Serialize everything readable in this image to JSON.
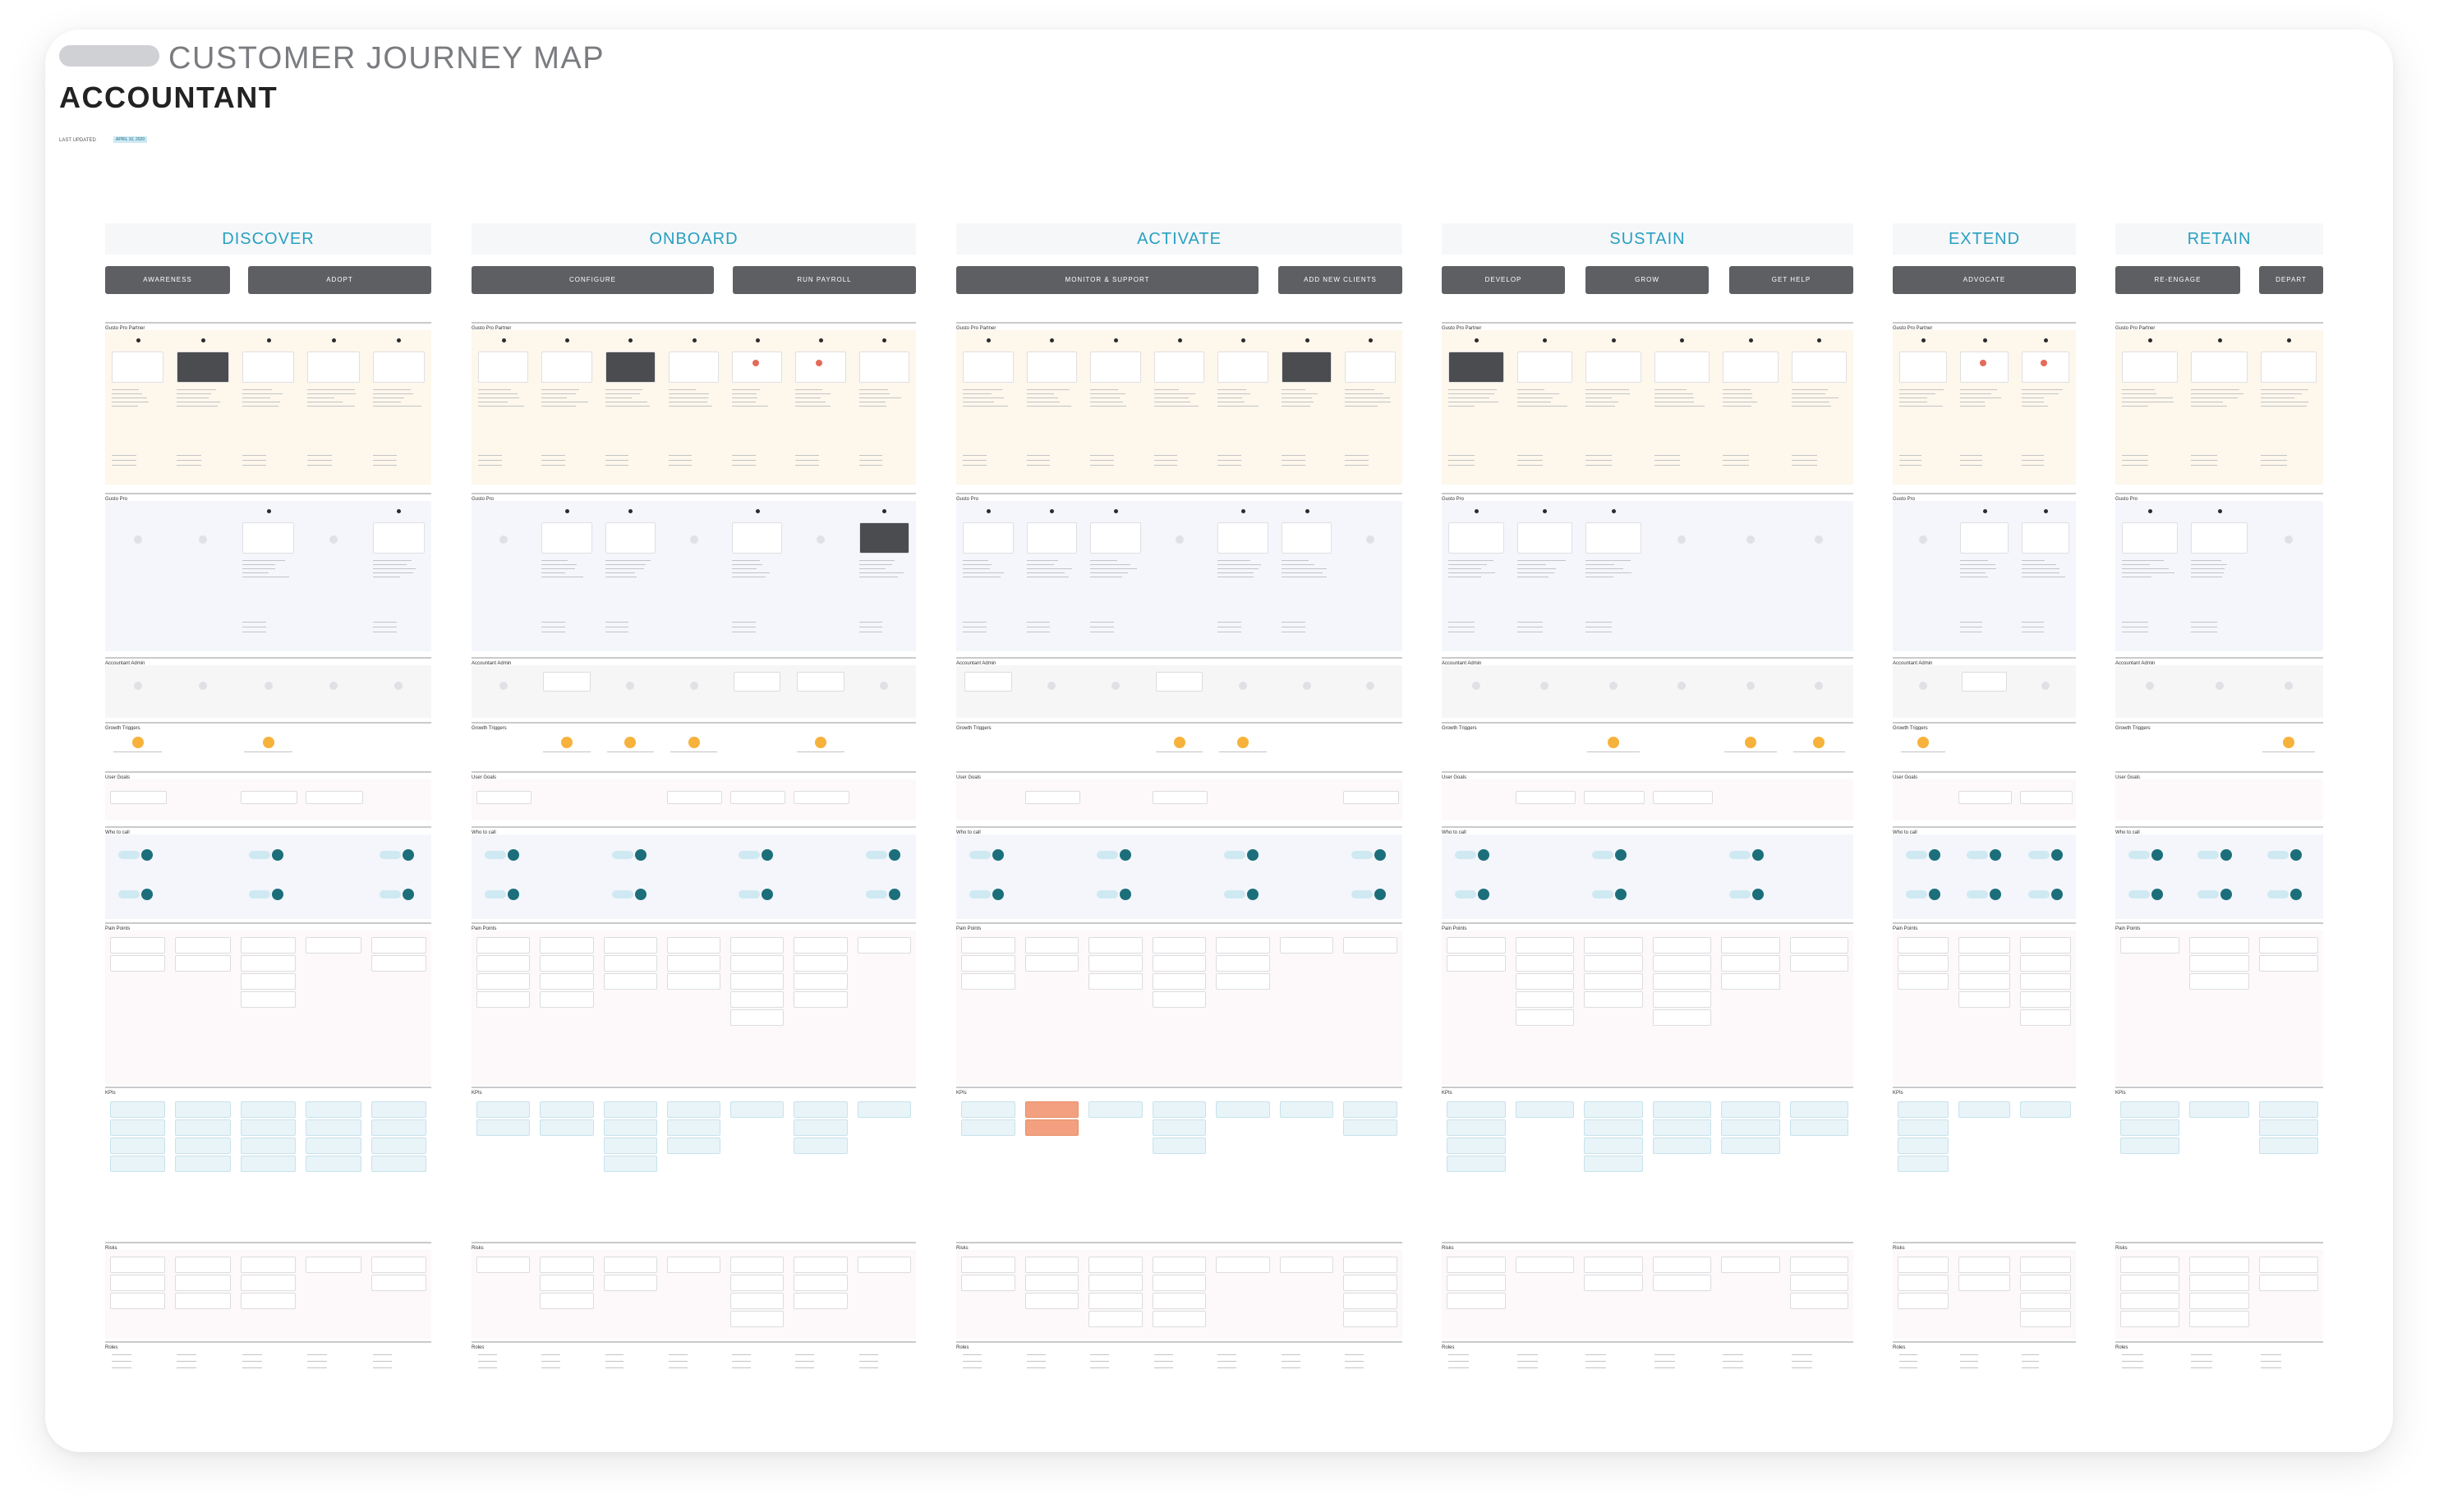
{
  "header": {
    "title_top": "CUSTOMER JOURNEY MAP",
    "title_main": "ACCOUNTANT",
    "updated_label": "LAST UPDATED",
    "updated_date": "APRIL 10, 2020"
  },
  "stages": [
    {
      "name": "DISCOVER",
      "phases": [
        "AWARENESS",
        "ADOPT"
      ]
    },
    {
      "name": "ONBOARD",
      "phases": [
        "CONFIGURE",
        "RUN PAYROLL"
      ]
    },
    {
      "name": "ACTIVATE",
      "phases": [
        "MONITOR & SUPPORT",
        "ADD NEW CLIENTS"
      ]
    },
    {
      "name": "SUSTAIN",
      "phases": [
        "DEVELOP",
        "GROW",
        "GET HELP"
      ]
    },
    {
      "name": "EXTEND",
      "phases": [
        "ADVOCATE"
      ]
    },
    {
      "name": "RETAIN",
      "phases": [
        "RE-ENGAGE",
        "DEPART"
      ]
    }
  ],
  "lanes": [
    "Gusto Pro Partner",
    "Gusto Pro",
    "Accountant Admin",
    "Growth Triggers",
    "User Goals",
    "Who to call",
    "Pain Points",
    "KPIs",
    "Risks",
    "Roles"
  ],
  "colors": {
    "stage_text": "#27a0c0",
    "phase_bg": "#5d5f63",
    "accent_orange": "#f6b23a",
    "accent_teal": "#1c6f7a"
  }
}
